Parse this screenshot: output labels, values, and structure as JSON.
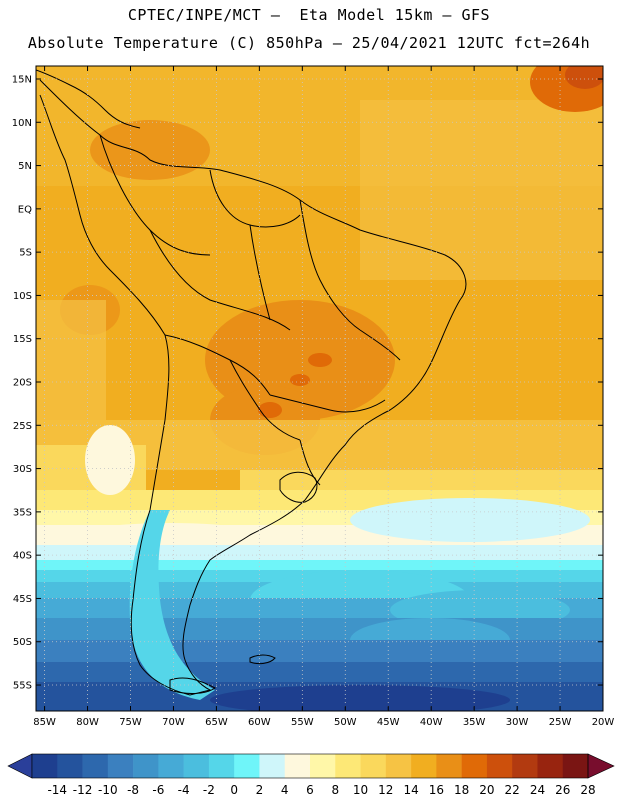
{
  "header": {
    "line1": "CPTEC/INPE/MCT –  Eta Model 15km – GFS",
    "line2": "Absolute Temperature (C) 850hPa – 25/04/2021 12UTC fct=264h"
  },
  "map": {
    "lat_labels": [
      "15N",
      "10N",
      "5N",
      "EQ",
      "5S",
      "10S",
      "15S",
      "20S",
      "25S",
      "30S",
      "35S",
      "40S",
      "45S",
      "50S",
      "55S"
    ],
    "lat_values": [
      15,
      10,
      5,
      0,
      -5,
      -10,
      -15,
      -20,
      -25,
      -30,
      -35,
      -40,
      -45,
      -50,
      -55
    ],
    "lon_labels": [
      "85W",
      "80W",
      "75W",
      "70W",
      "65W",
      "60W",
      "55W",
      "50W",
      "45W",
      "40W",
      "35W",
      "30W",
      "25W",
      "20W"
    ],
    "lon_values": [
      -85,
      -80,
      -75,
      -70,
      -65,
      -60,
      -55,
      -50,
      -45,
      -40,
      -35,
      -30,
      -25,
      -20
    ],
    "lon_range": [
      -86,
      -20
    ],
    "lat_range": [
      -58,
      16.5
    ]
  },
  "colorbar": {
    "labels": [
      "-14",
      "-12",
      "-10",
      "-8",
      "-6",
      "-4",
      "-2",
      "0",
      "2",
      "4",
      "6",
      "8",
      "10",
      "12",
      "14",
      "16",
      "18",
      "20",
      "22",
      "24",
      "26",
      "28"
    ],
    "colors": [
      "#1e3f8f",
      "#24539d",
      "#2d68ad",
      "#3b80bf",
      "#3f94c9",
      "#46aad6",
      "#4bbede",
      "#55d6e9",
      "#6ff5f9",
      "#cff6fa",
      "#fef8dd",
      "#fff7a8",
      "#fde876",
      "#fad85c",
      "#f6c344",
      "#f1ae20",
      "#e98f17",
      "#e06a07",
      "#cd500c",
      "#b23a10",
      "#98240f",
      "#7a1513"
    ],
    "low_color": "#2a3f9a",
    "high_color": "#780d2d"
  }
}
